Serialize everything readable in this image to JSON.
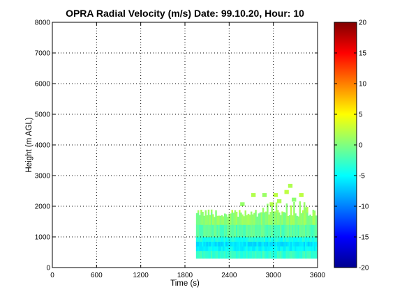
{
  "chart_data": {
    "type": "heatmap",
    "title": "OPRA Radial Velocity (m/s)  Date: 99.10.20, Hour: 10",
    "xlabel": "Time (s)",
    "ylabel": "Height (m AGL)",
    "xlim": [
      0,
      3600
    ],
    "ylim": [
      0,
      8000
    ],
    "xticks": [
      "0",
      "600",
      "1200",
      "1800",
      "2400",
      "3000",
      "3600"
    ],
    "yticks": [
      "0",
      "1000",
      "2000",
      "3000",
      "4000",
      "5000",
      "6000",
      "7000",
      "8000"
    ],
    "grid": true,
    "colorbar": {
      "colormap": "jet",
      "range": [
        -20,
        20
      ],
      "ticks": [
        "20",
        "15",
        "10",
        "5",
        "0",
        "-5",
        "-10",
        "-15",
        "-20"
      ]
    },
    "data_region": {
      "time_start": 1950,
      "time_end": 3590,
      "height_min": 300,
      "height_max": 2700,
      "layers": [
        {
          "height_from": 300,
          "height_to": 550,
          "velocity": -3
        },
        {
          "height_from": 550,
          "height_to": 700,
          "velocity": -5
        },
        {
          "height_from": 700,
          "height_to": 850,
          "velocity": -6
        },
        {
          "height_from": 850,
          "height_to": 1000,
          "velocity": -4
        },
        {
          "height_from": 1000,
          "height_to": 1400,
          "velocity": -1.5
        },
        {
          "height_from": 1400,
          "height_to": 1800,
          "velocity": 0.5
        },
        {
          "height_from": 1800,
          "height_to": 2700,
          "velocity": 1.5
        }
      ]
    }
  }
}
